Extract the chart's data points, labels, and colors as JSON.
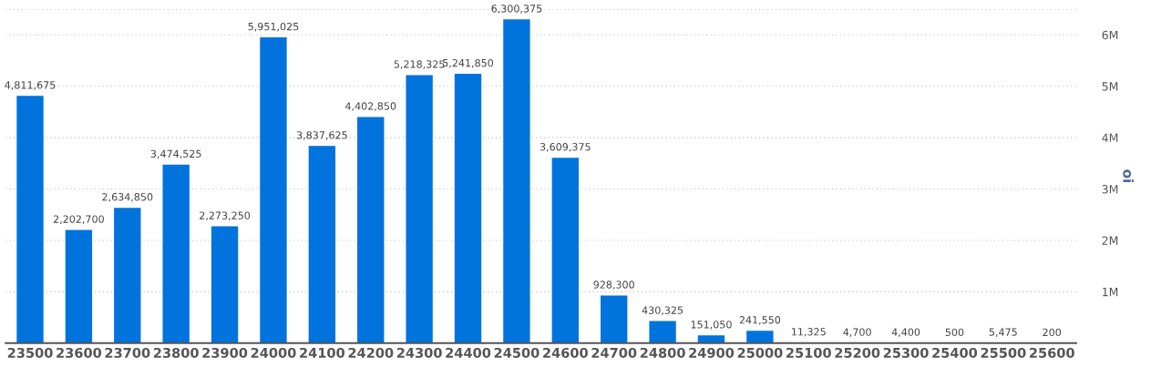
{
  "chart_data": {
    "type": "bar",
    "ylabel": "oi",
    "categories": [
      "23500",
      "23600",
      "23700",
      "23800",
      "23900",
      "24000",
      "24100",
      "24200",
      "24300",
      "24400",
      "24500",
      "24600",
      "24700",
      "24800",
      "24900",
      "25000",
      "25100",
      "25200",
      "25300",
      "25400",
      "25500",
      "25600"
    ],
    "values": [
      4811675,
      2202700,
      2634850,
      3474525,
      2273250,
      5951025,
      3837625,
      4402850,
      5218325,
      5241850,
      6300375,
      3609375,
      928300,
      430325,
      151050,
      241550,
      11325,
      4700,
      4400,
      500,
      5475,
      200
    ],
    "color": "#0073dd",
    "value_labels": [
      "4,811,675",
      "2,202,700",
      "2,634,850",
      "3,474,525",
      "2,273,250",
      "5,951,025",
      "3,837,625",
      "4,402,850",
      "5,218,325",
      "5,241,850",
      "6,300,375",
      "3,609,375",
      "928,300",
      "430,325",
      "151,050",
      "241,550",
      "11,325",
      "4,700",
      "4,400",
      "500",
      "5,475",
      "200"
    ],
    "ylim": [
      0,
      6500000
    ],
    "yticks": [
      {
        "value": 1000000,
        "label": "1M"
      },
      {
        "value": 2000000,
        "label": "2M"
      },
      {
        "value": 3000000,
        "label": "3M"
      },
      {
        "value": 4000000,
        "label": "4M"
      },
      {
        "value": 5000000,
        "label": "5M"
      },
      {
        "value": 6000000,
        "label": "6M"
      },
      {
        "value": 6500000,
        "label": null
      }
    ],
    "grid": "y"
  }
}
